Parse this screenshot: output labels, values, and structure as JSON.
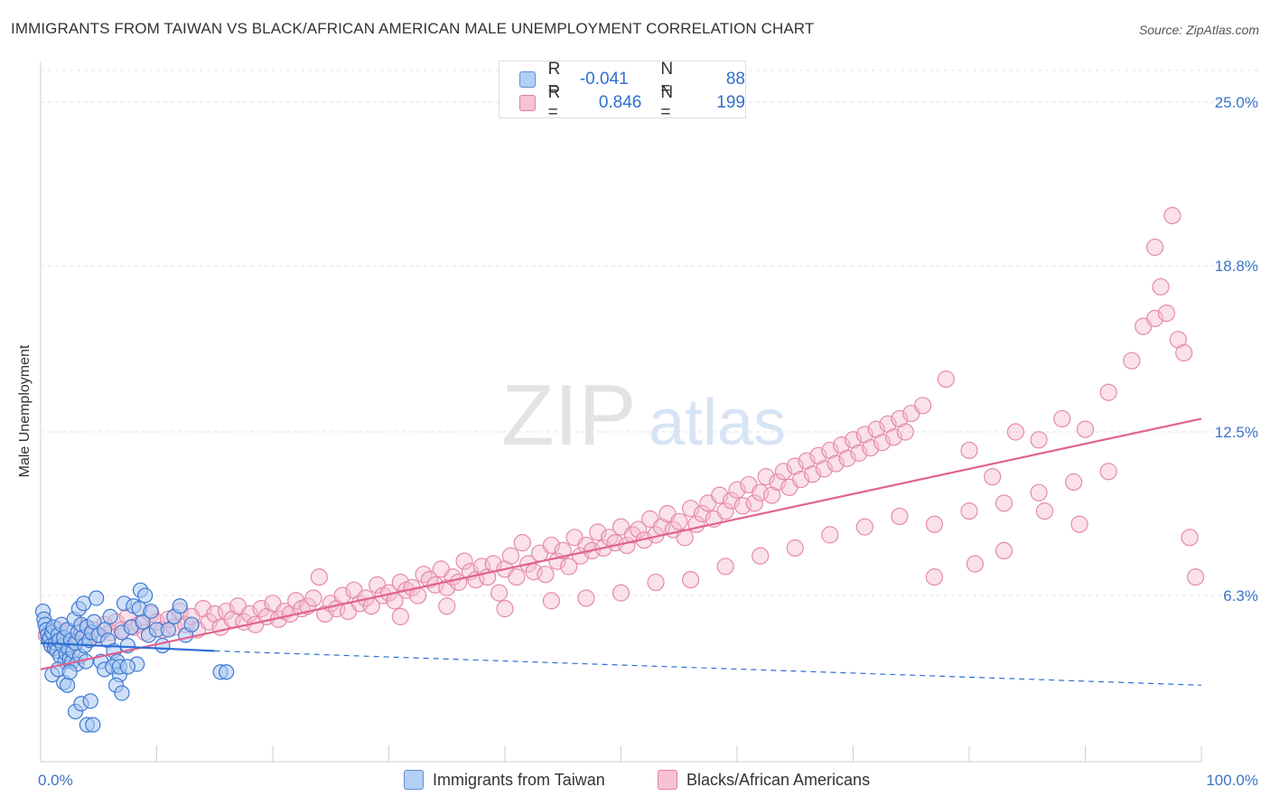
{
  "header": {
    "title": "IMMIGRANTS FROM TAIWAN VS BLACK/AFRICAN AMERICAN MALE UNEMPLOYMENT CORRELATION CHART",
    "source": "Source: ZipAtlas.com"
  },
  "watermark": {
    "zip": "ZIP",
    "atlas": "atlas"
  },
  "stats": {
    "r_label": "R =",
    "n_label": "N =",
    "rows": [
      {
        "series": "blue",
        "r": "-0.041",
        "n": "88"
      },
      {
        "series": "pink",
        "r": "0.846",
        "n": "199"
      }
    ]
  },
  "legend": {
    "items": [
      {
        "label": "Immigrants from Taiwan",
        "color": "#b3cff2"
      },
      {
        "label": "Blacks/African Americans",
        "color": "#f7c3d4"
      }
    ]
  },
  "colors": {
    "blue_fill": "#a9c8f0",
    "blue_stroke": "#3d78d2",
    "blue_line": "#2d6fd6",
    "pink_fill": "#f5bcd0",
    "pink_stroke": "#e58aa9",
    "pink_line": "#e0638e",
    "tick_label": "#3b74c9"
  },
  "chart_data": {
    "type": "scatter",
    "title": "IMMIGRANTS FROM TAIWAN VS BLACK/AFRICAN AMERICAN MALE UNEMPLOYMENT CORRELATION CHART",
    "xlabel": "",
    "ylabel": "Male Unemployment",
    "xlim": [
      0,
      100
    ],
    "ylim": [
      0,
      26.2
    ],
    "x_tick_labels": [
      "0.0%",
      "100.0%"
    ],
    "y_ticks": [
      6.3,
      12.5,
      18.8,
      25.0
    ],
    "y_tick_labels": [
      "6.3%",
      "12.5%",
      "18.8%",
      "25.0%"
    ],
    "grid": "horizontal dashed",
    "legend_position": "bottom",
    "series": [
      {
        "name": "Immigrants from Taiwan",
        "color": "#a9c8f0",
        "trend": {
          "x": [
            0,
            15
          ],
          "y": [
            4.5,
            4.2
          ],
          "dashed_to": [
            100,
            2.9
          ]
        },
        "points": [
          [
            0.2,
            5.7
          ],
          [
            0.3,
            5.4
          ],
          [
            0.4,
            5.2
          ],
          [
            0.5,
            5.0
          ],
          [
            0.6,
            4.8
          ],
          [
            0.7,
            4.6
          ],
          [
            0.8,
            4.7
          ],
          [
            0.9,
            4.4
          ],
          [
            1.0,
            4.9
          ],
          [
            1.1,
            5.1
          ],
          [
            1.2,
            4.3
          ],
          [
            1.3,
            4.5
          ],
          [
            1.4,
            4.2
          ],
          [
            1.5,
            4.8
          ],
          [
            1.6,
            4.6
          ],
          [
            1.7,
            4.0
          ],
          [
            1.8,
            5.2
          ],
          [
            1.9,
            4.4
          ],
          [
            2.0,
            4.7
          ],
          [
            2.1,
            3.8
          ],
          [
            2.2,
            4.1
          ],
          [
            2.3,
            5.0
          ],
          [
            2.4,
            4.3
          ],
          [
            2.5,
            3.9
          ],
          [
            2.6,
            4.6
          ],
          [
            2.7,
            3.8
          ],
          [
            2.8,
            4.2
          ],
          [
            2.9,
            5.4
          ],
          [
            3.0,
            4.5
          ],
          [
            3.1,
            3.7
          ],
          [
            3.2,
            4.9
          ],
          [
            3.3,
            5.8
          ],
          [
            3.4,
            4.0
          ],
          [
            3.5,
            5.2
          ],
          [
            3.6,
            4.7
          ],
          [
            3.7,
            6.0
          ],
          [
            3.8,
            4.4
          ],
          [
            3.9,
            3.8
          ],
          [
            4.0,
            5.1
          ],
          [
            4.2,
            4.6
          ],
          [
            4.4,
            4.9
          ],
          [
            4.6,
            5.3
          ],
          [
            4.8,
            6.2
          ],
          [
            5.0,
            4.8
          ],
          [
            5.2,
            3.8
          ],
          [
            5.5,
            5.0
          ],
          [
            5.8,
            4.6
          ],
          [
            6.0,
            5.5
          ],
          [
            6.3,
            4.2
          ],
          [
            6.6,
            3.8
          ],
          [
            7.0,
            4.9
          ],
          [
            7.2,
            6.0
          ],
          [
            7.5,
            4.4
          ],
          [
            7.8,
            5.1
          ],
          [
            8.0,
            5.9
          ],
          [
            8.3,
            3.7
          ],
          [
            8.6,
            6.5
          ],
          [
            8.8,
            5.3
          ],
          [
            9.0,
            6.3
          ],
          [
            9.3,
            4.8
          ],
          [
            1.0,
            3.3
          ],
          [
            1.5,
            3.5
          ],
          [
            2.0,
            3.0
          ],
          [
            2.3,
            2.9
          ],
          [
            2.5,
            3.4
          ],
          [
            3.0,
            1.9
          ],
          [
            3.5,
            2.2
          ],
          [
            4.0,
            1.4
          ],
          [
            4.5,
            1.4
          ],
          [
            4.3,
            2.3
          ],
          [
            5.5,
            3.5
          ],
          [
            6.2,
            3.6
          ],
          [
            6.8,
            3.3
          ],
          [
            6.5,
            2.9
          ],
          [
            7.0,
            2.6
          ],
          [
            6.8,
            3.6
          ],
          [
            7.5,
            3.6
          ],
          [
            8.5,
            5.8
          ],
          [
            9.5,
            5.7
          ],
          [
            10.0,
            5.0
          ],
          [
            10.5,
            4.4
          ],
          [
            11.5,
            5.5
          ],
          [
            11.0,
            5.0
          ],
          [
            12.0,
            5.9
          ],
          [
            12.5,
            4.8
          ],
          [
            13.0,
            5.2
          ],
          [
            15.5,
            3.4
          ],
          [
            16.0,
            3.4
          ]
        ]
      },
      {
        "name": "Blacks/African Americans",
        "color": "#f5bcd0",
        "trend": {
          "x": [
            0,
            100
          ],
          "y": [
            3.5,
            13.0
          ]
        },
        "points": [
          [
            0.5,
            4.8
          ],
          [
            1.0,
            4.4
          ],
          [
            1.5,
            5.0
          ],
          [
            2.0,
            4.6
          ],
          [
            2.5,
            4.9
          ],
          [
            3.0,
            4.5
          ],
          [
            3.5,
            5.1
          ],
          [
            4.0,
            4.7
          ],
          [
            4.5,
            5.0
          ],
          [
            5.0,
            4.8
          ],
          [
            5.5,
            5.2
          ],
          [
            6.0,
            4.9
          ],
          [
            6.5,
            5.3
          ],
          [
            7.0,
            5.0
          ],
          [
            7.5,
            5.5
          ],
          [
            8.0,
            5.1
          ],
          [
            8.5,
            5.2
          ],
          [
            9.0,
            4.9
          ],
          [
            9.5,
            5.6
          ],
          [
            10.0,
            5.3
          ],
          [
            10.5,
            5.0
          ],
          [
            11.0,
            5.4
          ],
          [
            11.5,
            5.1
          ],
          [
            12.0,
            5.7
          ],
          [
            12.5,
            5.2
          ],
          [
            13.0,
            5.5
          ],
          [
            13.5,
            5.0
          ],
          [
            14.0,
            5.8
          ],
          [
            14.5,
            5.3
          ],
          [
            15.0,
            5.6
          ],
          [
            15.5,
            5.1
          ],
          [
            16.0,
            5.7
          ],
          [
            16.5,
            5.4
          ],
          [
            17.0,
            5.9
          ],
          [
            17.5,
            5.3
          ],
          [
            18.0,
            5.6
          ],
          [
            18.5,
            5.2
          ],
          [
            19.0,
            5.8
          ],
          [
            19.5,
            5.5
          ],
          [
            20.0,
            6.0
          ],
          [
            20.5,
            5.4
          ],
          [
            21.0,
            5.7
          ],
          [
            21.5,
            5.6
          ],
          [
            22.0,
            6.1
          ],
          [
            22.5,
            5.8
          ],
          [
            23.0,
            5.9
          ],
          [
            23.5,
            6.2
          ],
          [
            24.0,
            7.0
          ],
          [
            24.5,
            5.6
          ],
          [
            25.0,
            6.0
          ],
          [
            25.5,
            5.8
          ],
          [
            26.0,
            6.3
          ],
          [
            26.5,
            5.7
          ],
          [
            27.0,
            6.5
          ],
          [
            27.5,
            6.0
          ],
          [
            28.0,
            6.2
          ],
          [
            28.5,
            5.9
          ],
          [
            29.0,
            6.7
          ],
          [
            29.5,
            6.3
          ],
          [
            30.0,
            6.4
          ],
          [
            30.5,
            6.1
          ],
          [
            31.0,
            6.8
          ],
          [
            31.5,
            6.5
          ],
          [
            32.0,
            6.6
          ],
          [
            32.5,
            6.3
          ],
          [
            33.0,
            7.1
          ],
          [
            33.5,
            6.9
          ],
          [
            34.0,
            6.7
          ],
          [
            34.5,
            7.3
          ],
          [
            35.0,
            6.6
          ],
          [
            35.5,
            7.0
          ],
          [
            36.0,
            6.8
          ],
          [
            36.5,
            7.6
          ],
          [
            37.0,
            7.2
          ],
          [
            37.5,
            6.9
          ],
          [
            38.0,
            7.4
          ],
          [
            38.5,
            7.0
          ],
          [
            39.0,
            7.5
          ],
          [
            39.5,
            6.4
          ],
          [
            40.0,
            7.3
          ],
          [
            40.5,
            7.8
          ],
          [
            41.0,
            7.0
          ],
          [
            41.5,
            8.3
          ],
          [
            42.0,
            7.5
          ],
          [
            42.5,
            7.2
          ],
          [
            43.0,
            7.9
          ],
          [
            43.5,
            7.1
          ],
          [
            44.0,
            8.2
          ],
          [
            44.5,
            7.6
          ],
          [
            45.0,
            8.0
          ],
          [
            45.5,
            7.4
          ],
          [
            46.0,
            8.5
          ],
          [
            46.5,
            7.8
          ],
          [
            47.0,
            8.2
          ],
          [
            47.5,
            8.0
          ],
          [
            48.0,
            8.7
          ],
          [
            48.5,
            8.1
          ],
          [
            49.0,
            8.5
          ],
          [
            49.5,
            8.3
          ],
          [
            50.0,
            8.9
          ],
          [
            50.5,
            8.2
          ],
          [
            51.0,
            8.6
          ],
          [
            51.5,
            8.8
          ],
          [
            52.0,
            8.4
          ],
          [
            52.5,
            9.2
          ],
          [
            53.0,
            8.6
          ],
          [
            53.5,
            8.9
          ],
          [
            54.0,
            9.4
          ],
          [
            54.5,
            8.8
          ],
          [
            55.0,
            9.1
          ],
          [
            55.5,
            8.5
          ],
          [
            56.0,
            9.6
          ],
          [
            56.5,
            9.0
          ],
          [
            57.0,
            9.4
          ],
          [
            57.5,
            9.8
          ],
          [
            58.0,
            9.2
          ],
          [
            58.5,
            10.1
          ],
          [
            59.0,
            9.5
          ],
          [
            59.5,
            9.9
          ],
          [
            60.0,
            10.3
          ],
          [
            60.5,
            9.7
          ],
          [
            61.0,
            10.5
          ],
          [
            61.5,
            9.8
          ],
          [
            62.0,
            10.2
          ],
          [
            62.5,
            10.8
          ],
          [
            63.0,
            10.1
          ],
          [
            63.5,
            10.6
          ],
          [
            64.0,
            11.0
          ],
          [
            64.5,
            10.4
          ],
          [
            65.0,
            11.2
          ],
          [
            65.5,
            10.7
          ],
          [
            66.0,
            11.4
          ],
          [
            66.5,
            10.9
          ],
          [
            67.0,
            11.6
          ],
          [
            67.5,
            11.1
          ],
          [
            68.0,
            11.8
          ],
          [
            68.5,
            11.3
          ],
          [
            69.0,
            12.0
          ],
          [
            69.5,
            11.5
          ],
          [
            70.0,
            12.2
          ],
          [
            70.5,
            11.7
          ],
          [
            71.0,
            12.4
          ],
          [
            71.5,
            11.9
          ],
          [
            72.0,
            12.6
          ],
          [
            72.5,
            12.1
          ],
          [
            73.0,
            12.8
          ],
          [
            73.5,
            12.3
          ],
          [
            74.0,
            13.0
          ],
          [
            74.5,
            12.5
          ],
          [
            75.0,
            13.2
          ],
          [
            31.0,
            5.5
          ],
          [
            35.0,
            5.9
          ],
          [
            40.0,
            5.8
          ],
          [
            44.0,
            6.1
          ],
          [
            47.0,
            6.2
          ],
          [
            50.0,
            6.4
          ],
          [
            53.0,
            6.8
          ],
          [
            56.0,
            6.9
          ],
          [
            59.0,
            7.4
          ],
          [
            62.0,
            7.8
          ],
          [
            65.0,
            8.1
          ],
          [
            68.0,
            8.6
          ],
          [
            71.0,
            8.9
          ],
          [
            74.0,
            9.3
          ],
          [
            77.0,
            9.0
          ],
          [
            80.0,
            9.5
          ],
          [
            83.0,
            9.8
          ],
          [
            86.0,
            10.2
          ],
          [
            89.0,
            10.6
          ],
          [
            92.0,
            11.0
          ],
          [
            76.0,
            13.5
          ],
          [
            78.0,
            14.5
          ],
          [
            80.0,
            11.8
          ],
          [
            82.0,
            10.8
          ],
          [
            84.0,
            12.5
          ],
          [
            86.0,
            12.2
          ],
          [
            88.0,
            13.0
          ],
          [
            90.0,
            12.6
          ],
          [
            92.0,
            14.0
          ],
          [
            94.0,
            15.2
          ],
          [
            95.0,
            16.5
          ],
          [
            96.0,
            16.8
          ],
          [
            96.5,
            18.0
          ],
          [
            97.0,
            17.0
          ],
          [
            98.0,
            16.0
          ],
          [
            98.5,
            15.5
          ],
          [
            96.0,
            19.5
          ],
          [
            97.5,
            20.7
          ],
          [
            99.0,
            8.5
          ],
          [
            99.5,
            7.0
          ],
          [
            77.0,
            7.0
          ],
          [
            80.5,
            7.5
          ],
          [
            83.0,
            8.0
          ],
          [
            86.5,
            9.5
          ],
          [
            89.5,
            9.0
          ]
        ]
      }
    ]
  }
}
